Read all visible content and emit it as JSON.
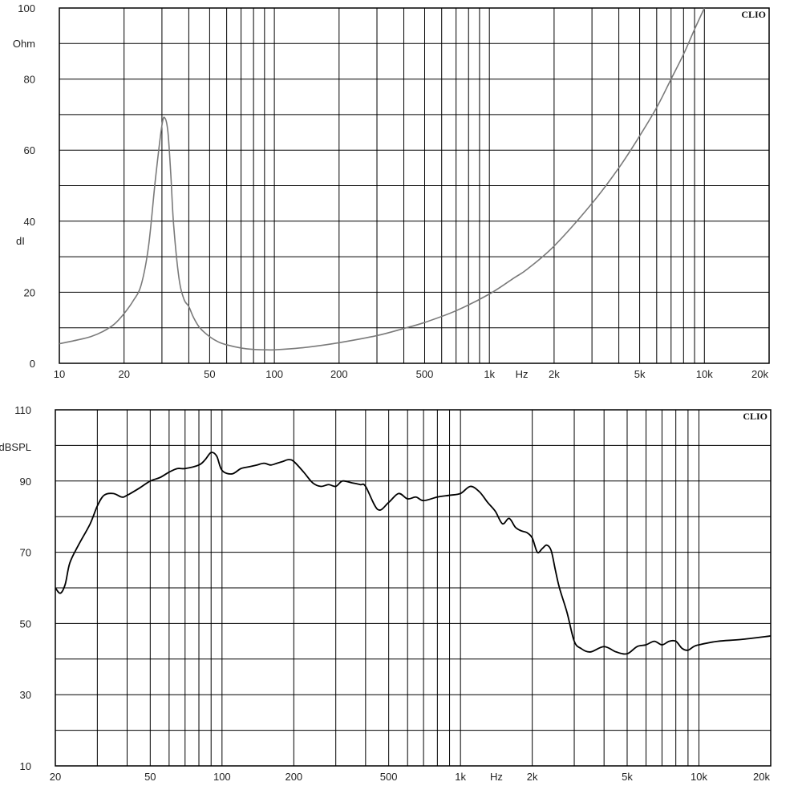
{
  "chart_data": [
    {
      "type": "line",
      "title": "",
      "brand": "CLIO",
      "y_unit": "Ohm",
      "y_side_label": "dI",
      "x_unit": "Hz",
      "x_scale": "log",
      "xlim": [
        10,
        20000
      ],
      "ylim": [
        0,
        100
      ],
      "grid": true,
      "line_color": "#7a7a7a",
      "y_ticks": [
        {
          "value": 0,
          "label": "0"
        },
        {
          "value": 20,
          "label": "20"
        },
        {
          "value": 40,
          "label": "40"
        },
        {
          "value": 60,
          "label": "60"
        },
        {
          "value": 80,
          "label": "80"
        },
        {
          "value": 100,
          "label": "100"
        }
      ],
      "y_minor": [
        10,
        30,
        50,
        70,
        90
      ],
      "x_ticks": [
        {
          "value": 10,
          "label": "10"
        },
        {
          "value": 20,
          "label": "20"
        },
        {
          "value": 50,
          "label": "50"
        },
        {
          "value": 100,
          "label": "100"
        },
        {
          "value": 200,
          "label": "200"
        },
        {
          "value": 500,
          "label": "500"
        },
        {
          "value": 1000,
          "label": "1k"
        },
        {
          "value": 2000,
          "label": "2k"
        },
        {
          "value": 5000,
          "label": "5k"
        },
        {
          "value": 10000,
          "label": "10k"
        },
        {
          "value": 20000,
          "label": "20k"
        }
      ],
      "series": [
        {
          "x": [
            10,
            12,
            14,
            16,
            18,
            20,
            22,
            24,
            26,
            28,
            30,
            31,
            32,
            33,
            34,
            36,
            38,
            40,
            42,
            45,
            50,
            55,
            60,
            70,
            80,
            90,
            100,
            120,
            150,
            200,
            300,
            400,
            500,
            700,
            1000,
            1300,
            1500,
            2000,
            3000,
            4000,
            5000,
            6000,
            7000,
            8000,
            9000,
            10000
          ],
          "y": [
            5.5,
            6.5,
            7.5,
            9,
            11,
            14,
            17.5,
            22,
            33,
            52,
            67,
            69,
            65,
            53,
            39,
            24,
            18,
            16,
            13,
            10,
            7.5,
            6,
            5.2,
            4.3,
            3.9,
            3.8,
            3.8,
            4.1,
            4.7,
            5.8,
            7.8,
            9.8,
            11.5,
            14.8,
            19.5,
            24,
            26.5,
            33,
            45,
            55,
            64,
            72,
            80,
            87,
            94,
            100
          ]
        }
      ]
    },
    {
      "type": "line",
      "title": "",
      "brand": "CLIO",
      "y_unit": "dBSPL",
      "x_unit": "Hz",
      "x_scale": "log",
      "xlim": [
        20,
        20000
      ],
      "ylim": [
        10,
        110
      ],
      "grid": true,
      "line_color": "#000000",
      "y_ticks": [
        {
          "value": 10,
          "label": "10"
        },
        {
          "value": 30,
          "label": "30"
        },
        {
          "value": 50,
          "label": "50"
        },
        {
          "value": 70,
          "label": "70"
        },
        {
          "value": 90,
          "label": "90"
        },
        {
          "value": 110,
          "label": "110"
        }
      ],
      "y_minor": [
        20,
        40,
        60,
        80,
        100
      ],
      "x_ticks": [
        {
          "value": 20,
          "label": "20"
        },
        {
          "value": 50,
          "label": "50"
        },
        {
          "value": 100,
          "label": "100"
        },
        {
          "value": 200,
          "label": "200"
        },
        {
          "value": 500,
          "label": "500"
        },
        {
          "value": 1000,
          "label": "1k"
        },
        {
          "value": 2000,
          "label": "2k"
        },
        {
          "value": 5000,
          "label": "5k"
        },
        {
          "value": 10000,
          "label": "10k"
        },
        {
          "value": 20000,
          "label": "20k"
        }
      ],
      "series": [
        {
          "x": [
            20,
            21,
            22,
            23,
            25,
            28,
            30,
            32,
            35,
            38,
            40,
            45,
            50,
            55,
            60,
            65,
            70,
            80,
            85,
            90,
            95,
            100,
            110,
            120,
            130,
            140,
            150,
            160,
            170,
            180,
            190,
            200,
            220,
            240,
            260,
            280,
            300,
            320,
            350,
            380,
            400,
            450,
            500,
            550,
            600,
            650,
            700,
            800,
            900,
            1000,
            1100,
            1200,
            1300,
            1400,
            1500,
            1600,
            1700,
            1800,
            1900,
            2000,
            2100,
            2200,
            2300,
            2400,
            2500,
            2600,
            2800,
            3000,
            3200,
            3500,
            4000,
            4500,
            5000,
            5500,
            6000,
            6500,
            7000,
            7500,
            8000,
            8500,
            9000,
            9500,
            10000,
            12000,
            15000,
            20000
          ],
          "y": [
            60,
            58.5,
            61,
            67,
            72,
            78,
            83,
            86,
            86.5,
            85.5,
            86,
            88,
            90,
            91,
            92.5,
            93.5,
            93.5,
            94.5,
            96,
            98,
            97,
            93,
            92,
            93.5,
            94,
            94.5,
            95,
            94.5,
            95,
            95.5,
            96,
            95.5,
            92.5,
            89.5,
            88.5,
            89,
            88.5,
            90,
            89.5,
            89,
            88.5,
            82,
            84,
            86.5,
            85,
            85.5,
            84.5,
            85.5,
            86,
            86.5,
            88.5,
            87,
            84,
            81.5,
            78,
            79.5,
            77,
            76,
            75.5,
            74,
            70,
            71,
            72,
            70.5,
            65,
            60,
            53,
            45,
            43,
            42,
            43.5,
            42,
            41.5,
            43.5,
            44,
            45,
            44,
            45,
            45,
            43,
            42.5,
            43.5,
            44,
            45,
            45.5,
            46.5
          ]
        }
      ]
    }
  ]
}
